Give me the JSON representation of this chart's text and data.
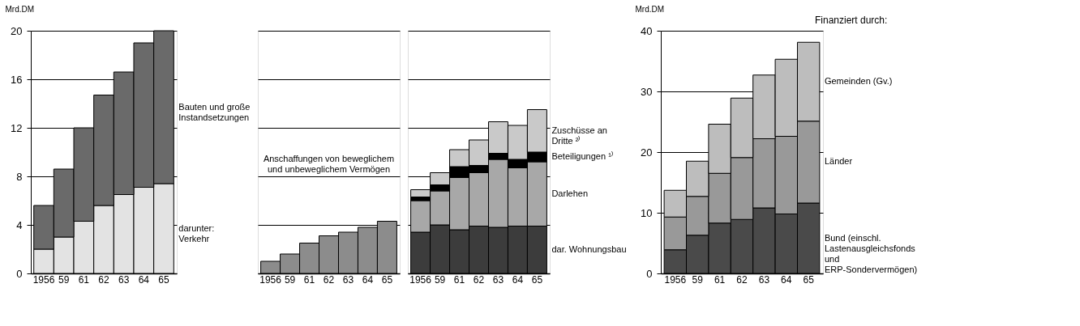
{
  "chart_data": [
    {
      "type": "bar",
      "stacked": true,
      "ylabel": "Mrd.DM",
      "categories": [
        "1956",
        "59",
        "61",
        "62",
        "63",
        "64",
        "65"
      ],
      "ylim": [
        0,
        20
      ],
      "yticks": [
        0,
        4,
        8,
        12,
        16,
        20
      ],
      "grid": "y",
      "series": [
        {
          "name": "darunter: Verkehr",
          "color": "#e3e3e3",
          "values": [
            2.0,
            3.0,
            4.3,
            5.6,
            6.5,
            7.1,
            7.4
          ]
        },
        {
          "name": "Bauten und große Instandsetzungen",
          "color": "#6a6a6a",
          "values": [
            3.6,
            5.6,
            7.7,
            9.1,
            10.1,
            11.9,
            12.6
          ]
        }
      ]
    },
    {
      "type": "bar",
      "categories": [
        "1956",
        "59",
        "61",
        "62",
        "63",
        "64",
        "65"
      ],
      "ylim": [
        0,
        20
      ],
      "yticks": [
        0,
        4,
        8,
        12,
        16,
        20
      ],
      "grid": "y",
      "tick_labels": "x",
      "series": [
        {
          "name": "Anschaffungen von beweglichem und unbeweglichem Vermögen",
          "color": "#8c8c8c",
          "values": [
            1.0,
            1.6,
            2.5,
            3.1,
            3.4,
            3.8,
            4.3
          ]
        }
      ]
    },
    {
      "type": "bar",
      "stacked": true,
      "categories": [
        "1956",
        "59",
        "61",
        "62",
        "63",
        "64",
        "65"
      ],
      "ylim": [
        0,
        20
      ],
      "yticks": [
        0,
        4,
        8,
        12,
        16,
        20
      ],
      "grid": "y",
      "tick_labels": "x",
      "series": [
        {
          "name": "dar. Wohnungsbau",
          "color": "#3c3c3c",
          "values": [
            3.4,
            4.0,
            3.6,
            3.9,
            3.8,
            3.9,
            3.9
          ]
        },
        {
          "name": "Darlehen",
          "color": "#a8a8a8",
          "values": [
            2.6,
            2.8,
            4.3,
            4.4,
            5.6,
            4.8,
            5.3
          ]
        },
        {
          "name": "Beteiligungen ¹⁾",
          "color": "#000000",
          "values": [
            0.3,
            0.5,
            0.9,
            0.6,
            0.5,
            0.7,
            0.8
          ]
        },
        {
          "name": "Zuschüsse an Dritte ²⁾",
          "color": "#c9c9c9",
          "values": [
            0.6,
            1.0,
            1.4,
            2.1,
            2.6,
            2.8,
            3.5
          ]
        }
      ]
    },
    {
      "type": "bar",
      "stacked": true,
      "ylabel": "Mrd.DM",
      "legend_title": "Finanziert durch:",
      "categories": [
        "1956",
        "59",
        "61",
        "62",
        "63",
        "64",
        "65"
      ],
      "ylim": [
        0,
        40
      ],
      "yticks": [
        0,
        10,
        20,
        30,
        40
      ],
      "grid": "y",
      "series": [
        {
          "name": "Bund (einschl. Lastenausgleichsfonds und ERP-Sondervermögen)",
          "color": "#4a4a4a",
          "values": [
            3.9,
            6.3,
            8.3,
            8.9,
            10.8,
            9.8,
            11.6
          ]
        },
        {
          "name": "Länder",
          "color": "#999999",
          "values": [
            5.4,
            6.4,
            8.2,
            10.2,
            11.4,
            12.8,
            13.5
          ]
        },
        {
          "name": "Gemeinden (Gv.)",
          "color": "#bdbdbd",
          "values": [
            4.4,
            5.8,
            8.1,
            9.8,
            10.5,
            12.7,
            13.0
          ]
        }
      ]
    }
  ]
}
